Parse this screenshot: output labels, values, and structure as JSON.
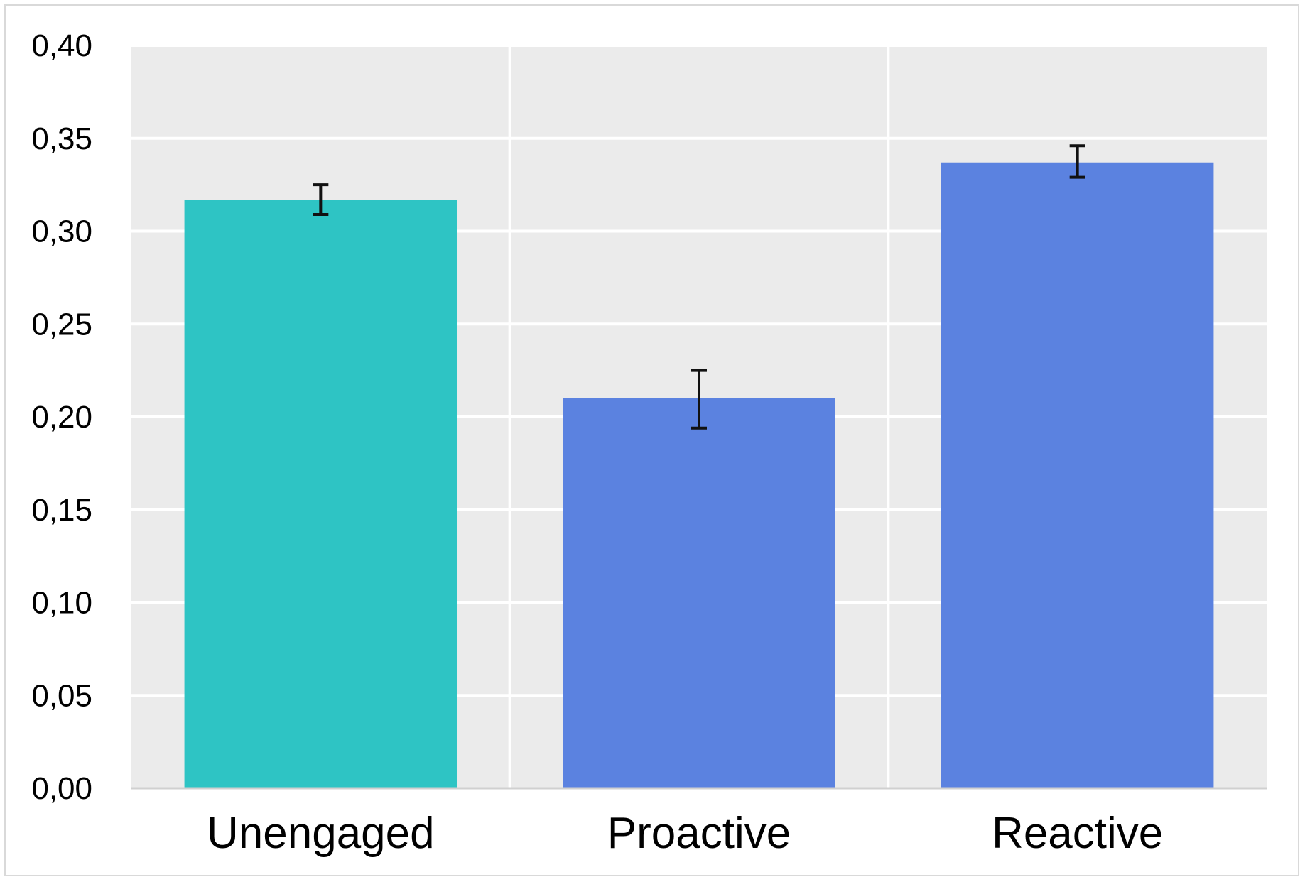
{
  "chart_data": {
    "type": "bar",
    "title": "",
    "xlabel": "",
    "ylabel": "",
    "categories": [
      "Unengaged",
      "Proactive",
      "Reactive"
    ],
    "values": [
      0.317,
      0.21,
      0.337
    ],
    "error_bars": [
      {
        "low": 0.309,
        "high": 0.325
      },
      {
        "low": 0.194,
        "high": 0.225
      },
      {
        "low": 0.329,
        "high": 0.346
      }
    ],
    "bar_colors": [
      "#2ec4c4",
      "#5b82e0",
      "#5b82e0"
    ],
    "ylim": [
      0,
      0.4
    ],
    "yticks": [
      0.0,
      0.05,
      0.1,
      0.15,
      0.2,
      0.25,
      0.3,
      0.35,
      0.4
    ],
    "ytick_labels": [
      "0,00",
      "0,05",
      "0,10",
      "0,15",
      "0,20",
      "0,25",
      "0,30",
      "0,35",
      "0,40"
    ],
    "grid": true,
    "legend": "none",
    "plot_background": "#ebebeb",
    "grid_color": "#ffffff",
    "error_bar_color": "#111111"
  }
}
